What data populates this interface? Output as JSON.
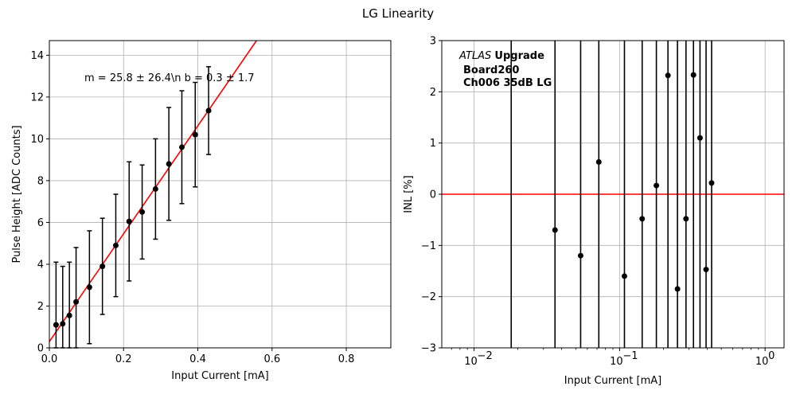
{
  "figure": {
    "title": "LG Linearity"
  },
  "chart_data": [
    {
      "type": "scatter",
      "xlabel": "Input Current [mA]",
      "ylabel": "Pulse Height [ADC Counts]",
      "xlim": [
        0,
        0.92
      ],
      "ylim": [
        0,
        14.7
      ],
      "xticks": [
        0,
        0.2,
        0.4,
        0.6,
        0.8
      ],
      "xtick_labels": [
        "0.0",
        "0.2",
        "0.4",
        "0.6",
        "0.8"
      ],
      "yticks": [
        0,
        2,
        4,
        6,
        8,
        10,
        12,
        14
      ],
      "grid": true,
      "annotation": "m = 25.8 ± 26.4\\n b = 0.3 ± 1.7",
      "fit_line": {
        "slope": 25.8,
        "intercept": 0.3,
        "color": "#ff0000"
      },
      "point_color": "#000000",
      "points": [
        {
          "x": 0.018,
          "y": 1.1,
          "err": 3.0
        },
        {
          "x": 0.036,
          "y": 1.15,
          "err": 2.75
        },
        {
          "x": 0.054,
          "y": 1.55,
          "err": 2.55
        },
        {
          "x": 0.072,
          "y": 2.2,
          "err": 2.6
        },
        {
          "x": 0.108,
          "y": 2.9,
          "err": 2.7
        },
        {
          "x": 0.143,
          "y": 3.9,
          "err": 2.3
        },
        {
          "x": 0.179,
          "y": 4.9,
          "err": 2.45
        },
        {
          "x": 0.215,
          "y": 6.05,
          "err": 2.85
        },
        {
          "x": 0.25,
          "y": 6.5,
          "err": 2.25
        },
        {
          "x": 0.286,
          "y": 7.6,
          "err": 2.4
        },
        {
          "x": 0.322,
          "y": 8.8,
          "err": 2.7
        },
        {
          "x": 0.357,
          "y": 9.6,
          "err": 2.7
        },
        {
          "x": 0.393,
          "y": 10.2,
          "err": 2.5
        },
        {
          "x": 0.429,
          "y": 11.35,
          "err": 2.1
        }
      ]
    },
    {
      "type": "scatter",
      "xlabel": "Input Current [mA]",
      "ylabel": "INL [%]",
      "xscale": "log",
      "xlim": [
        0.006,
        1.35
      ],
      "ylim": [
        -3,
        3
      ],
      "xticks": [
        0.01,
        0.1,
        1
      ],
      "xtick_labels": [
        [
          "10",
          "−2"
        ],
        [
          "10",
          "−1"
        ],
        [
          "10",
          "0"
        ]
      ],
      "yticks": [
        -3,
        -2,
        -1,
        0,
        1,
        2,
        3
      ],
      "ytick_labels": [
        "−3",
        "−2",
        "−1",
        "0",
        "1",
        "2",
        "3"
      ],
      "grid": true,
      "annotation": {
        "italic": "ATLAS",
        "bold": "Upgrade",
        "line2": "Board260",
        "line3": "Ch006 35dB LG"
      },
      "ref_line": {
        "y": 0,
        "color": "#ff0000"
      },
      "point_color": "#000000",
      "points": [
        {
          "x": 0.018,
          "y": null,
          "err": 30
        },
        {
          "x": 0.036,
          "y": -0.7,
          "err": 30
        },
        {
          "x": 0.054,
          "y": -1.2,
          "err": 30
        },
        {
          "x": 0.072,
          "y": 0.63,
          "err": 30
        },
        {
          "x": 0.108,
          "y": -1.6,
          "err": 30
        },
        {
          "x": 0.143,
          "y": -0.48,
          "err": 30
        },
        {
          "x": 0.179,
          "y": 0.17,
          "err": 30
        },
        {
          "x": 0.215,
          "y": 2.32,
          "err": 30
        },
        {
          "x": 0.25,
          "y": -1.85,
          "err": 30
        },
        {
          "x": 0.286,
          "y": -0.48,
          "err": 30
        },
        {
          "x": 0.322,
          "y": 2.33,
          "err": 30
        },
        {
          "x": 0.357,
          "y": 1.1,
          "err": 30
        },
        {
          "x": 0.393,
          "y": -1.47,
          "err": 30
        },
        {
          "x": 0.429,
          "y": 0.22,
          "err": 30
        }
      ]
    }
  ]
}
